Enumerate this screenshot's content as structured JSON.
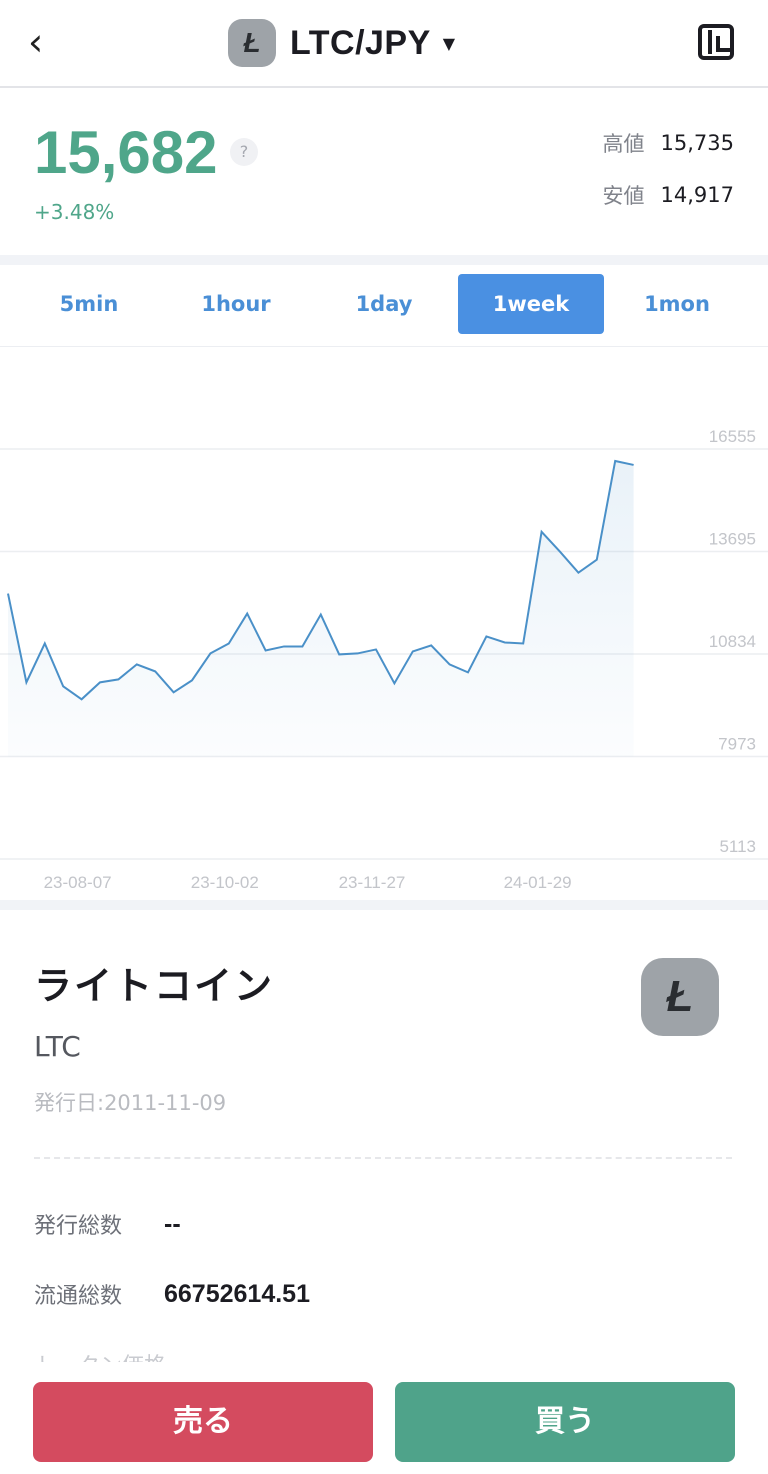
{
  "header": {
    "title": "LTC/JPY",
    "back_icon": "chevron-left-icon",
    "coin_letter": "Ł",
    "layout_icon": "layout-icon"
  },
  "ticker": {
    "price": "15,682",
    "help": "?",
    "change": "+3.48%",
    "high_label": "高値",
    "high": "15,735",
    "low_label": "安値",
    "low": "14,917"
  },
  "tabs": [
    {
      "label": "5min"
    },
    {
      "label": "1hour"
    },
    {
      "label": "1day"
    },
    {
      "label": "1week",
      "active": true
    },
    {
      "label": "1mon"
    }
  ],
  "colors": {
    "up": "#4fa68a",
    "line": "#4a90c8",
    "sell": "#d44b5f",
    "buy": "#4fa38a",
    "tab_active": "#4a90e2"
  },
  "chart_data": {
    "type": "area",
    "x": [
      "23-07-10",
      "23-07-17",
      "23-07-24",
      "23-07-31",
      "23-08-07",
      "23-08-14",
      "23-08-21",
      "23-08-28",
      "23-09-04",
      "23-09-11",
      "23-09-18",
      "23-09-25",
      "23-10-02",
      "23-10-09",
      "23-10-16",
      "23-10-23",
      "23-10-30",
      "23-11-06",
      "23-11-13",
      "23-11-20",
      "23-11-27",
      "23-12-04",
      "23-12-11",
      "23-12-18",
      "23-12-25",
      "24-01-01",
      "24-01-08",
      "24-01-15",
      "24-01-22",
      "24-01-29",
      "24-02-05",
      "24-02-12",
      "24-02-19",
      "24-02-26",
      "24-03-04"
    ],
    "values": [
      12520,
      10043,
      11128,
      9931,
      9570,
      10043,
      10126,
      10544,
      10349,
      9764,
      10098,
      10850,
      11128,
      11963,
      10933,
      11045,
      11045,
      11935,
      10822,
      10850,
      10961,
      10015,
      10906,
      11073,
      10544,
      10321,
      11323,
      11156,
      11128,
      14245,
      13689,
      13104,
      13466,
      16221,
      16110
    ],
    "y_ticks": [
      "16555",
      "13695",
      "10834",
      "7973",
      "5113"
    ],
    "x_ticks": [
      "23-08-07",
      "23-10-02",
      "23-11-27",
      "24-01-29"
    ],
    "ylim": [
      5113,
      16555
    ],
    "grid": true
  },
  "info": {
    "name": "ライトコイン",
    "symbol": "LTC",
    "issue_date": "発行日:2011-11-09",
    "rows": [
      {
        "label": "発行総数",
        "value": "--"
      },
      {
        "label": "流通総数",
        "value": "66752614.51"
      }
    ],
    "partial_label": "トークン価格"
  },
  "actions": {
    "sell": "売る",
    "buy": "買う"
  }
}
